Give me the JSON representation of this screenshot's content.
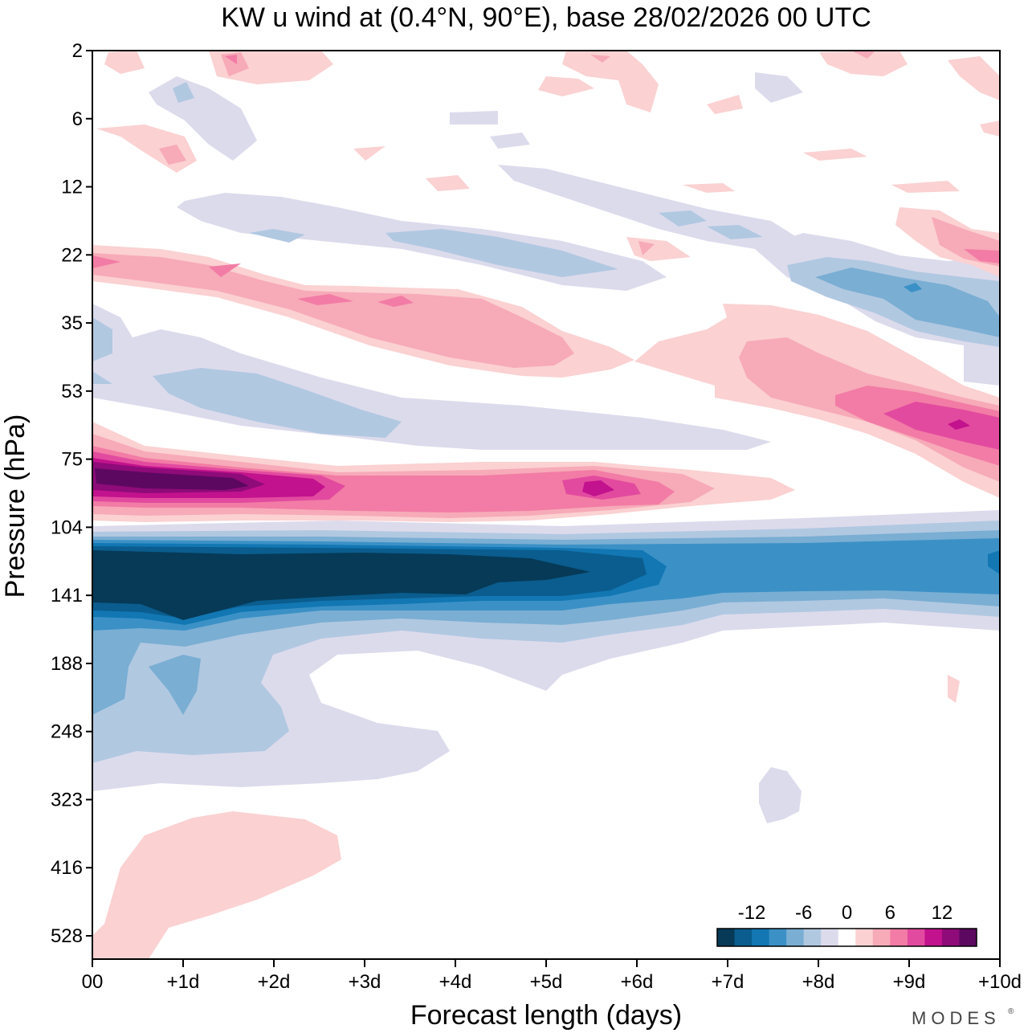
{
  "chart_data": {
    "type": "heatmap",
    "title": "KW u wind at (0.4°N, 90°E),  base 28/02/2026  00 UTC",
    "xlabel": "Forecast length (days)",
    "ylabel": "Pressure (hPa)",
    "x_ticks": [
      "00",
      "+1d",
      "+2d",
      "+3d",
      "+4d",
      "+5d",
      "+6d",
      "+7d",
      "+8d",
      "+9d",
      "+10d"
    ],
    "y_ticks": [
      "2",
      "6",
      "12",
      "22",
      "35",
      "53",
      "75",
      "104",
      "141",
      "188",
      "248",
      "323",
      "416",
      "528"
    ],
    "xlim_days": [
      0,
      10
    ],
    "colorbar": {
      "tick_labels": [
        "-12",
        "-6",
        "0",
        "6",
        "12"
      ],
      "levels": [
        -16,
        -14,
        -12,
        -10,
        -8,
        -6,
        -4,
        -2,
        2,
        4,
        6,
        8,
        10,
        12,
        14,
        16
      ],
      "colors": [
        "#063a57",
        "#0a5d8e",
        "#1277b3",
        "#3b91c6",
        "#7aaed3",
        "#b1c8e1",
        "#dcdbec",
        "#ffffff",
        "#fbd1d2",
        "#f7aab8",
        "#f27ca5",
        "#e24a9f",
        "#c3128d",
        "#8e0b79",
        "#5c0860"
      ]
    },
    "features": [
      {
        "name": "deep easterly jet",
        "day_start": 0,
        "day_end": 6.6,
        "pressure_top_hPa": 110,
        "pressure_bottom_hPa": 145,
        "min_value": -16
      },
      {
        "name": "westerly band",
        "day_start": 0,
        "day_end": 7.8,
        "pressure_top_hPa": 70,
        "pressure_bottom_hPa": 98,
        "max_value": 16
      },
      {
        "name": "descending westerly band",
        "day_start": 7,
        "day_end": 10,
        "pressure_top_hPa": 45,
        "pressure_bottom_hPa": 75,
        "max_value": 12
      }
    ],
    "brand": "MODES"
  }
}
